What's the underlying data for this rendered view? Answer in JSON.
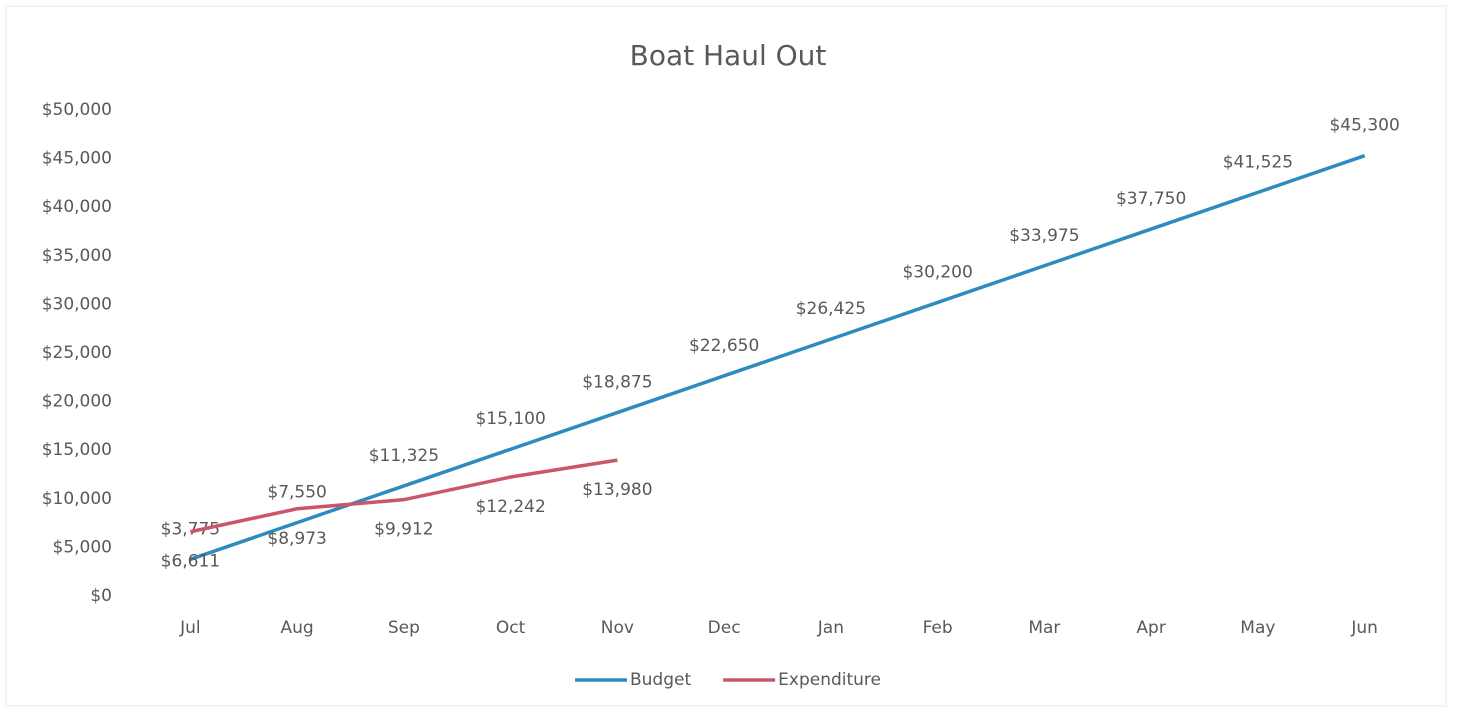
{
  "chart_data": {
    "type": "line",
    "title": "Boat Haul Out",
    "categories": [
      "Jul",
      "Aug",
      "Sep",
      "Oct",
      "Nov",
      "Dec",
      "Jan",
      "Feb",
      "Mar",
      "Apr",
      "May",
      "Jun"
    ],
    "series": [
      {
        "name": "Budget",
        "color": "#2e8bc0",
        "values": [
          3775,
          7550,
          11325,
          15100,
          18875,
          22650,
          26425,
          30200,
          33975,
          37750,
          41525,
          45300
        ],
        "value_labels": [
          "$3,775",
          "$7,550",
          "$11,325",
          "$15,100",
          "$18,875",
          "$22,650",
          "$26,425",
          "$30,200",
          "$33,975",
          "$37,750",
          "$41,525",
          "$45,300"
        ]
      },
      {
        "name": "Expenditure",
        "color": "#c9566b",
        "values": [
          6611,
          8973,
          9912,
          12242,
          13980,
          null,
          null,
          null,
          null,
          null,
          null,
          null
        ],
        "value_labels": [
          "$6,611",
          "$8,973",
          "$9,912",
          "$12,242",
          "$13,980",
          null,
          null,
          null,
          null,
          null,
          null,
          null
        ]
      }
    ],
    "ylim": [
      0,
      50000
    ],
    "yticks": [
      {
        "value": 0,
        "label": "$0"
      },
      {
        "value": 5000,
        "label": "$5,000"
      },
      {
        "value": 10000,
        "label": "$10,000"
      },
      {
        "value": 15000,
        "label": "$15,000"
      },
      {
        "value": 20000,
        "label": "$20,000"
      },
      {
        "value": 25000,
        "label": "$25,000"
      },
      {
        "value": 30000,
        "label": "$30,000"
      },
      {
        "value": 35000,
        "label": "$35,000"
      },
      {
        "value": 40000,
        "label": "$40,000"
      },
      {
        "value": 45000,
        "label": "$45,000"
      },
      {
        "value": 50000,
        "label": "$50,000"
      }
    ],
    "grid": false,
    "legend": "bottom"
  }
}
